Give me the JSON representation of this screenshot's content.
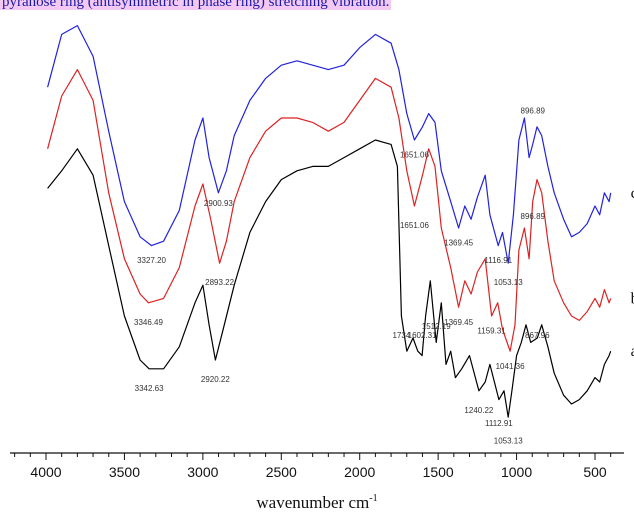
{
  "caption_fragment": "pyranose ring (antisymmetric in phase ring) stretching vibration.",
  "colors": {
    "highlight": "#f3c9f3",
    "caption_text": "#1a1aa6",
    "series_a": "#000000",
    "series_b": "#dd2222",
    "series_c": "#2222dd"
  },
  "chart_data": {
    "type": "line",
    "title": "",
    "xlabel": "wavenumber cm",
    "xlabel_superscript": "-1",
    "ylabel": "",
    "x_reversed": true,
    "xlim": [
      4000,
      400
    ],
    "ylim": [
      0,
      100
    ],
    "x_ticks": [
      4000,
      3500,
      3000,
      2500,
      2000,
      1500,
      1000,
      500
    ],
    "grid": false,
    "legend": "right-end series labels",
    "series": [
      {
        "name": "c",
        "color": "#2222dd",
        "points": [
          [
            3990,
            82
          ],
          [
            3900,
            94
          ],
          [
            3800,
            96
          ],
          [
            3700,
            89
          ],
          [
            3600,
            72
          ],
          [
            3500,
            56
          ],
          [
            3400,
            48
          ],
          [
            3327.2,
            46
          ],
          [
            3250,
            47
          ],
          [
            3150,
            54
          ],
          [
            3050,
            70
          ],
          [
            3000,
            75
          ],
          [
            2960,
            66
          ],
          [
            2900.93,
            58
          ],
          [
            2850,
            63
          ],
          [
            2800,
            71
          ],
          [
            2700,
            79
          ],
          [
            2600,
            84
          ],
          [
            2500,
            87
          ],
          [
            2400,
            88
          ],
          [
            2300,
            87
          ],
          [
            2200,
            86
          ],
          [
            2100,
            87
          ],
          [
            2000,
            91
          ],
          [
            1900,
            94
          ],
          [
            1800,
            92
          ],
          [
            1750,
            86
          ],
          [
            1700,
            76
          ],
          [
            1651.06,
            70
          ],
          [
            1600,
            73
          ],
          [
            1560,
            76
          ],
          [
            1520,
            74
          ],
          [
            1480,
            63
          ],
          [
            1420,
            56
          ],
          [
            1369.45,
            50
          ],
          [
            1330,
            55
          ],
          [
            1290,
            52
          ],
          [
            1250,
            57
          ],
          [
            1200,
            62
          ],
          [
            1170,
            53
          ],
          [
            1116.91,
            46
          ],
          [
            1090,
            49
          ],
          [
            1053.13,
            42
          ],
          [
            1020,
            53
          ],
          [
            985,
            70
          ],
          [
            950,
            75
          ],
          [
            920,
            66
          ],
          [
            896.89,
            69
          ],
          [
            870,
            73
          ],
          [
            840,
            71
          ],
          [
            800,
            64
          ],
          [
            760,
            58
          ],
          [
            700,
            52
          ],
          [
            650,
            48
          ],
          [
            600,
            49
          ],
          [
            550,
            51
          ],
          [
            500,
            55
          ],
          [
            470,
            53
          ],
          [
            440,
            58
          ],
          [
            410,
            56
          ],
          [
            400,
            58
          ]
        ]
      },
      {
        "name": "b",
        "color": "#dd2222",
        "points": [
          [
            3990,
            68
          ],
          [
            3900,
            80
          ],
          [
            3800,
            86
          ],
          [
            3700,
            79
          ],
          [
            3600,
            58
          ],
          [
            3500,
            43
          ],
          [
            3400,
            35
          ],
          [
            3346.49,
            33
          ],
          [
            3250,
            34
          ],
          [
            3150,
            41
          ],
          [
            3050,
            55
          ],
          [
            3000,
            60
          ],
          [
            2950,
            52
          ],
          [
            2893.22,
            42
          ],
          [
            2850,
            47
          ],
          [
            2800,
            56
          ],
          [
            2700,
            66
          ],
          [
            2600,
            72
          ],
          [
            2500,
            75
          ],
          [
            2400,
            75
          ],
          [
            2300,
            74
          ],
          [
            2200,
            72
          ],
          [
            2100,
            74
          ],
          [
            2000,
            79
          ],
          [
            1900,
            84
          ],
          [
            1800,
            82
          ],
          [
            1750,
            75
          ],
          [
            1700,
            63
          ],
          [
            1651.06,
            55
          ],
          [
            1600,
            62
          ],
          [
            1560,
            68
          ],
          [
            1520,
            64
          ],
          [
            1480,
            50
          ],
          [
            1420,
            41
          ],
          [
            1369.45,
            32
          ],
          [
            1330,
            38
          ],
          [
            1290,
            35
          ],
          [
            1250,
            40
          ],
          [
            1200,
            43
          ],
          [
            1159.31,
            30
          ],
          [
            1120,
            33
          ],
          [
            1090,
            27
          ],
          [
            1041.36,
            22
          ],
          [
            1010,
            28
          ],
          [
            985,
            45
          ],
          [
            950,
            50
          ],
          [
            920,
            43
          ],
          [
            896.89,
            56
          ],
          [
            870,
            61
          ],
          [
            840,
            58
          ],
          [
            800,
            47
          ],
          [
            760,
            38
          ],
          [
            700,
            33
          ],
          [
            650,
            30
          ],
          [
            600,
            29
          ],
          [
            550,
            31
          ],
          [
            500,
            34
          ],
          [
            470,
            32
          ],
          [
            440,
            36
          ],
          [
            410,
            33
          ],
          [
            400,
            34
          ]
        ]
      },
      {
        "name": "a",
        "color": "#000000",
        "points": [
          [
            3990,
            59
          ],
          [
            3900,
            63
          ],
          [
            3800,
            68
          ],
          [
            3700,
            62
          ],
          [
            3600,
            46
          ],
          [
            3500,
            30
          ],
          [
            3400,
            20
          ],
          [
            3342.63,
            18
          ],
          [
            3250,
            18
          ],
          [
            3150,
            23
          ],
          [
            3050,
            33
          ],
          [
            3000,
            37
          ],
          [
            2960,
            28
          ],
          [
            2920.22,
            20
          ],
          [
            2870,
            27
          ],
          [
            2800,
            37
          ],
          [
            2700,
            49
          ],
          [
            2600,
            56
          ],
          [
            2500,
            61
          ],
          [
            2400,
            63
          ],
          [
            2300,
            64
          ],
          [
            2200,
            64
          ],
          [
            2100,
            66
          ],
          [
            2000,
            68
          ],
          [
            1900,
            70
          ],
          [
            1800,
            69
          ],
          [
            1760,
            64
          ],
          [
            1734,
            30
          ],
          [
            1700,
            22
          ],
          [
            1660,
            25
          ],
          [
            1630,
            22
          ],
          [
            1602.31,
            21
          ],
          [
            1580,
            30
          ],
          [
            1550,
            38
          ],
          [
            1512.19,
            24
          ],
          [
            1480,
            33
          ],
          [
            1450,
            19
          ],
          [
            1420,
            22
          ],
          [
            1390,
            16
          ],
          [
            1350,
            18
          ],
          [
            1300,
            21
          ],
          [
            1240.22,
            13
          ],
          [
            1200,
            15
          ],
          [
            1170,
            19
          ],
          [
            1112.91,
            11
          ],
          [
            1080,
            13
          ],
          [
            1053.13,
            7
          ],
          [
            1030,
            13
          ],
          [
            1000,
            21
          ],
          [
            970,
            24
          ],
          [
            940,
            28
          ],
          [
            910,
            24
          ],
          [
            867.96,
            25
          ],
          [
            840,
            28
          ],
          [
            800,
            23
          ],
          [
            760,
            17
          ],
          [
            700,
            12
          ],
          [
            650,
            10
          ],
          [
            600,
            11
          ],
          [
            550,
            13
          ],
          [
            500,
            16
          ],
          [
            470,
            15
          ],
          [
            440,
            19
          ],
          [
            410,
            21
          ],
          [
            400,
            22
          ]
        ]
      }
    ],
    "peak_annotations": [
      {
        "series": "c",
        "text": "3327.20",
        "x": 3327.2,
        "y": 42
      },
      {
        "series": "c",
        "text": "2900.93",
        "x": 2900.93,
        "y": 55
      },
      {
        "series": "c",
        "text": "1651.06",
        "x": 1651.06,
        "y": 66
      },
      {
        "series": "c",
        "text": "1369.45",
        "x": 1369.45,
        "y": 46
      },
      {
        "series": "c",
        "text": "1116.91",
        "x": 1116.91,
        "y": 42
      },
      {
        "series": "c",
        "text": "1053.13",
        "x": 1053.13,
        "y": 37
      },
      {
        "series": "c",
        "text": "896.89",
        "x": 896.89,
        "y": 76
      },
      {
        "series": "b",
        "text": "3346.49",
        "x": 3346.49,
        "y": 28
      },
      {
        "series": "b",
        "text": "2893.22",
        "x": 2893.22,
        "y": 37
      },
      {
        "series": "b",
        "text": "1651.06",
        "x": 1651.06,
        "y": 50
      },
      {
        "series": "b",
        "text": "1369.45",
        "x": 1369.45,
        "y": 28
      },
      {
        "series": "b",
        "text": "1159.31",
        "x": 1159.31,
        "y": 26
      },
      {
        "series": "b",
        "text": "1041.36",
        "x": 1041.36,
        "y": 18
      },
      {
        "series": "b",
        "text": "896.89",
        "x": 896.89,
        "y": 52
      },
      {
        "series": "a",
        "text": "3342.63",
        "x": 3342.63,
        "y": 13
      },
      {
        "series": "a",
        "text": "2920.22",
        "x": 2920.22,
        "y": 15
      },
      {
        "series": "a",
        "text": "1734",
        "x": 1734,
        "y": 25
      },
      {
        "series": "a",
        "text": "1602.31",
        "x": 1602.31,
        "y": 25
      },
      {
        "series": "a",
        "text": "1512.19",
        "x": 1512.19,
        "y": 27
      },
      {
        "series": "a",
        "text": "1240.22",
        "x": 1240.22,
        "y": 8
      },
      {
        "series": "a",
        "text": "1112.91",
        "x": 1112.91,
        "y": 5
      },
      {
        "series": "a",
        "text": "1053.13",
        "x": 1053.13,
        "y": 1
      },
      {
        "series": "a",
        "text": "867.96",
        "x": 867.96,
        "y": 25
      }
    ]
  }
}
